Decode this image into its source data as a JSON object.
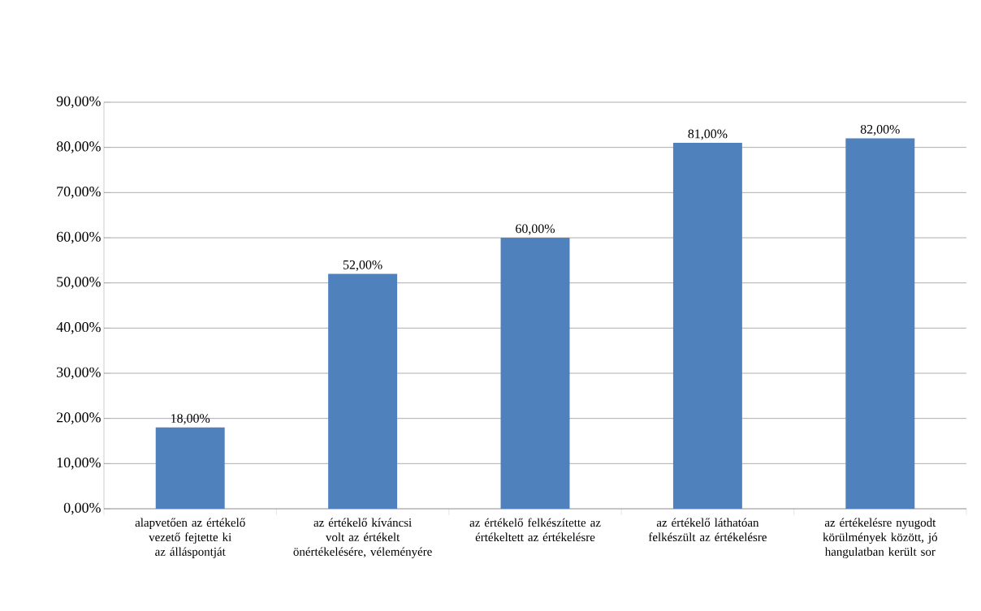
{
  "chart_data": {
    "type": "bar",
    "categories": [
      "alapvetően az értékelő vezető fejtette ki az álláspontját",
      "az értékelő kíváncsi volt az értékelt önértékelésére, véleményére",
      "az értékelő felkészítette az értékeltett az értékelésre",
      "az értékelő láthatóan felkészült az értékelésre",
      "az értékelésre nyugodt körülmények között, jó hangulatban került sor"
    ],
    "values": [
      18,
      52,
      60,
      81,
      82
    ],
    "value_labels": [
      "18,00%",
      "52,00%",
      "60,00%",
      "81,00%",
      "82,00%"
    ],
    "color": "#4f81bd",
    "ylim": [
      0,
      90
    ],
    "yticks": [
      {
        "value": 0,
        "label": "0,00%"
      },
      {
        "value": 10,
        "label": "10,00%"
      },
      {
        "value": 20,
        "label": "20,00%"
      },
      {
        "value": 30,
        "label": "30,00%"
      },
      {
        "value": 40,
        "label": "40,00%"
      },
      {
        "value": 50,
        "label": "50,00%"
      },
      {
        "value": 60,
        "label": "60,00%"
      },
      {
        "value": 70,
        "label": "70,00%"
      },
      {
        "value": 80,
        "label": "80,00%"
      },
      {
        "value": 90,
        "label": "90,00%"
      }
    ],
    "grid": "y"
  }
}
